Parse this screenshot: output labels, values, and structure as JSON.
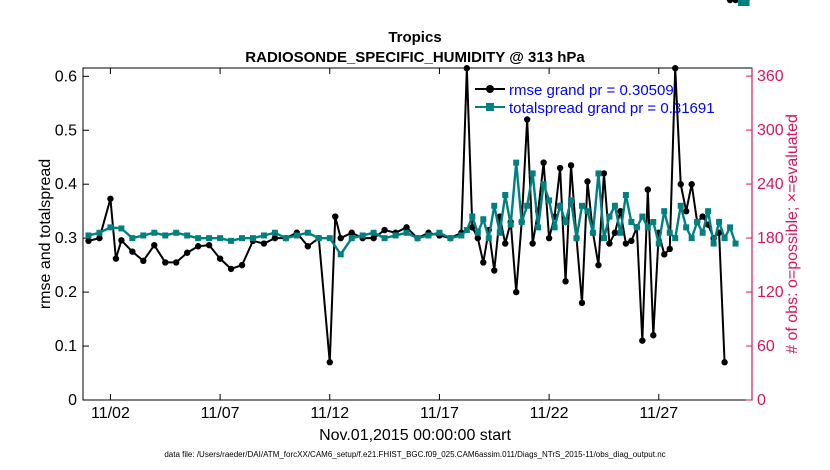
{
  "colors": {
    "rmse": "#000000",
    "spread": "#008080",
    "obs": "#d6175f",
    "legend_text": "#0000ff",
    "axis": "#000000"
  },
  "chart_data": {
    "type": "line",
    "title": "Tropics",
    "subtitle": "RADIOSONDE_SPECIFIC_HUMIDITY @ 313 hPa",
    "xlabel": "Nov.01,2015 00:00:00 start",
    "ylabel": "rmse and totalspread",
    "y2label": "# of obs: o=possible; ×=evaluated",
    "footnote": "data file: /Users/raeder/DAI/ATM_forcXX/CAM6_setup/f.e21.FHIST_BGC.f09_025.CAM6assim.011/Diags_NTrS_2015-11/obs_diag_output.nc",
    "xlim": [
      0.75,
      31.25
    ],
    "ylim": [
      0,
      0.6154
    ],
    "y2lim": [
      0,
      369
    ],
    "x_ticks": [
      2,
      7,
      12,
      17,
      22,
      27
    ],
    "x_tick_labels": [
      "11/02",
      "11/07",
      "11/12",
      "11/17",
      "11/22",
      "11/27"
    ],
    "y_ticks": [
      0,
      0.1,
      0.2,
      0.3,
      0.4,
      0.5,
      0.6
    ],
    "y_tick_labels": [
      "0",
      "0.1",
      "0.2",
      "0.3",
      "0.4",
      "0.5",
      "0.6"
    ],
    "y2_ticks": [
      0,
      60,
      120,
      180,
      240,
      300,
      360
    ],
    "y2_tick_labels": [
      "0",
      "60",
      "120",
      "180",
      "240",
      "300",
      "360"
    ],
    "legend": [
      "rmse grand pr = 0.30509",
      "totalspread grand pr = 0.31691"
    ],
    "legend_position": "top-right",
    "x_rmse": [
      1,
      1.5,
      2,
      2.25,
      2.5,
      3,
      3.5,
      4,
      4.5,
      5,
      5.5,
      6,
      6.5,
      7,
      7.5,
      8,
      8.5,
      9,
      9.5,
      10,
      10.5,
      11,
      11.5,
      12,
      12.25,
      12.5,
      13,
      13.5,
      14,
      14.5,
      15,
      15.5,
      16,
      16.5,
      17,
      17.5,
      18,
      18.25,
      18.5,
      18.75,
      19,
      19.25,
      19.5,
      19.75,
      20,
      20.25,
      20.5,
      20.75,
      21,
      21.25,
      21.5,
      21.75,
      22,
      22.25,
      22.5,
      22.75,
      23,
      23.25,
      23.5,
      23.75,
      24,
      24.25,
      24.5,
      24.75,
      25,
      25.25,
      25.5,
      25.75,
      26,
      26.25,
      26.5,
      26.75,
      27,
      27.25,
      27.5,
      27.75,
      28,
      28.25,
      28.5,
      28.75,
      29,
      29.25,
      29.5,
      29.75,
      30,
      30.25,
      30.5,
      30.75,
      31
    ],
    "rmse": [
      0.295,
      0.3,
      0.373,
      0.262,
      0.296,
      0.275,
      0.258,
      0.287,
      0.255,
      0.255,
      0.273,
      0.285,
      0.287,
      0.262,
      0.243,
      0.25,
      0.295,
      0.29,
      0.3,
      0.3,
      0.31,
      0.285,
      0.3,
      0.07,
      0.34,
      0.3,
      0.31,
      0.3,
      0.3,
      0.315,
      0.31,
      0.32,
      0.3,
      0.31,
      0.305,
      0.3,
      0.31,
      0.615,
      0.32,
      0.3,
      0.255,
      0.315,
      0.24,
      0.34,
      0.29,
      0.33,
      0.2,
      0.33,
      0.52,
      0.29,
      0.35,
      0.44,
      0.3,
      0.34,
      0.43,
      0.22,
      0.435,
      0.3,
      0.18,
      0.405,
      0.31,
      0.25,
      0.42,
      0.29,
      0.31,
      0.35,
      0.29,
      0.295,
      0.32,
      0.11,
      0.39,
      0.12,
      0.31,
      0.27,
      0.28,
      0.615,
      0.4,
      0.35,
      0.4,
      0.33,
      0.34,
      0.325,
      0.3,
      0.31,
      0.07
    ],
    "x_spread": [
      1,
      1.5,
      2,
      2.5,
      3,
      3.5,
      4,
      4.5,
      5,
      5.5,
      6,
      6.5,
      7,
      7.5,
      8,
      8.5,
      9,
      9.5,
      10,
      10.5,
      11,
      11.5,
      12,
      12.5,
      13,
      13.5,
      14,
      14.5,
      15,
      15.5,
      16,
      16.5,
      17,
      17.5,
      18,
      18.25,
      18.5,
      18.75,
      19,
      19.25,
      19.5,
      19.75,
      20,
      20.25,
      20.5,
      20.75,
      21,
      21.25,
      21.5,
      21.75,
      22,
      22.25,
      22.5,
      22.75,
      23,
      23.25,
      23.5,
      23.75,
      24,
      24.25,
      24.5,
      24.75,
      25,
      25.25,
      25.5,
      25.75,
      26,
      26.25,
      26.5,
      26.75,
      27,
      27.25,
      27.5,
      27.75,
      28,
      28.25,
      28.5,
      28.75,
      29,
      29.25,
      29.5,
      29.75,
      30,
      30.25,
      30.5,
      30.75,
      31
    ],
    "spread": [
      0.305,
      0.31,
      0.32,
      0.318,
      0.3,
      0.305,
      0.31,
      0.305,
      0.31,
      0.305,
      0.3,
      0.3,
      0.3,
      0.295,
      0.3,
      0.3,
      0.305,
      0.31,
      0.3,
      0.305,
      0.31,
      0.3,
      0.3,
      0.27,
      0.3,
      0.305,
      0.31,
      0.3,
      0.305,
      0.31,
      0.3,
      0.305,
      0.31,
      0.3,
      0.305,
      0.315,
      0.34,
      0.31,
      0.335,
      0.3,
      0.36,
      0.31,
      0.38,
      0.325,
      0.44,
      0.33,
      0.36,
      0.42,
      0.32,
      0.4,
      0.37,
      0.32,
      0.36,
      0.33,
      0.37,
      0.3,
      0.36,
      0.35,
      0.31,
      0.42,
      0.3,
      0.34,
      0.36,
      0.31,
      0.38,
      0.33,
      0.32,
      0.34,
      0.32,
      0.33,
      0.29,
      0.35,
      0.31,
      0.3,
      0.36,
      0.32,
      0.3,
      0.33,
      0.31,
      0.35,
      0.29,
      0.33,
      0.3,
      0.32,
      0.29
    ]
  }
}
